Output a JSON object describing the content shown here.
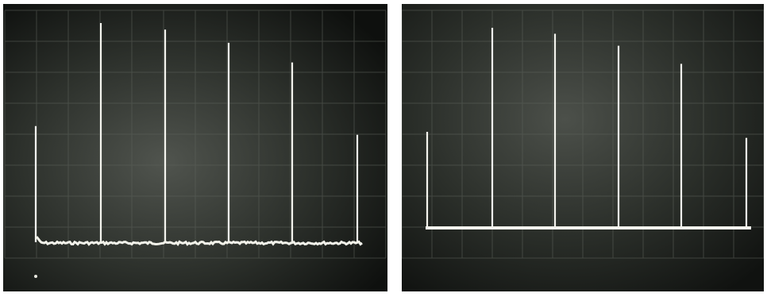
{
  "photo": {
    "subject": "oscilloscope-spectrum-traces",
    "panels": [
      {
        "id": "left",
        "trace_style": "noisy",
        "pulse_heights_relative": [
          0.53,
          1.0,
          0.97,
          0.91,
          0.82,
          0.49
        ]
      },
      {
        "id": "right",
        "trace_style": "clean",
        "pulse_heights_relative": [
          0.48,
          1.0,
          0.97,
          0.91,
          0.82,
          0.45
        ]
      }
    ],
    "colors": {
      "screen_dark": "#101210",
      "screen_glow": "#4a4e48",
      "grid": "#5d625b",
      "trace": "#f2f2ea",
      "divider": "#ffffff"
    }
  }
}
